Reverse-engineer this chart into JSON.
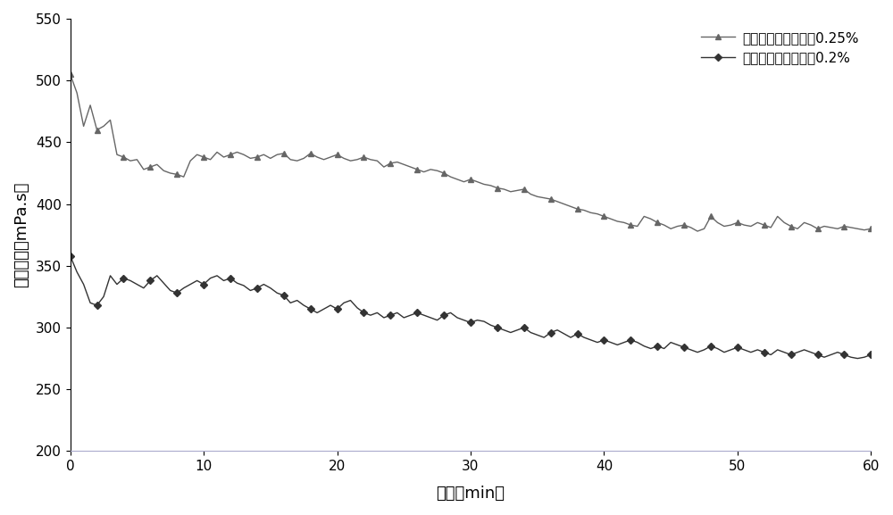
{
  "xlabel": "时间（min）",
  "ylabel": "剪切粘度（mPa.s）",
  "legend_025": "羞甲基胍胶质量分数0.25%",
  "legend_020": "羞甲基胍胶质量分数0.2%",
  "xlim": [
    0,
    60
  ],
  "ylim": [
    200,
    550
  ],
  "xticks": [
    0,
    10,
    20,
    30,
    40,
    50,
    60
  ],
  "yticks": [
    200,
    250,
    300,
    350,
    400,
    450,
    500,
    550
  ],
  "line_color_025": "#666666",
  "line_color_020": "#333333",
  "bg_color": "#ffffff",
  "x_025": [
    0,
    0.5,
    1,
    1.5,
    2,
    2.5,
    3,
    3.5,
    4,
    4.5,
    5,
    5.5,
    6,
    6.5,
    7,
    7.5,
    8,
    8.5,
    9,
    9.5,
    10,
    10.5,
    11,
    11.5,
    12,
    12.5,
    13,
    13.5,
    14,
    14.5,
    15,
    15.5,
    16,
    16.5,
    17,
    17.5,
    18,
    18.5,
    19,
    19.5,
    20,
    20.5,
    21,
    21.5,
    22,
    22.5,
    23,
    23.5,
    24,
    24.5,
    25,
    25.5,
    26,
    26.5,
    27,
    27.5,
    28,
    28.5,
    29,
    29.5,
    30,
    30.5,
    31,
    31.5,
    32,
    32.5,
    33,
    33.5,
    34,
    34.5,
    35,
    35.5,
    36,
    36.5,
    37,
    37.5,
    38,
    38.5,
    39,
    39.5,
    40,
    40.5,
    41,
    41.5,
    42,
    42.5,
    43,
    43.5,
    44,
    44.5,
    45,
    45.5,
    46,
    46.5,
    47,
    47.5,
    48,
    48.5,
    49,
    49.5,
    50,
    50.5,
    51,
    51.5,
    52,
    52.5,
    53,
    53.5,
    54,
    54.5,
    55,
    55.5,
    56,
    56.5,
    57,
    57.5,
    58,
    58.5,
    59,
    59.5,
    60
  ],
  "y_025": [
    505,
    490,
    463,
    480,
    460,
    463,
    468,
    440,
    438,
    435,
    436,
    428,
    430,
    432,
    427,
    425,
    424,
    422,
    435,
    440,
    438,
    436,
    442,
    438,
    440,
    442,
    440,
    437,
    438,
    440,
    437,
    440,
    441,
    436,
    435,
    437,
    441,
    438,
    436,
    438,
    440,
    437,
    435,
    436,
    438,
    436,
    435,
    430,
    433,
    434,
    432,
    430,
    428,
    426,
    428,
    427,
    425,
    422,
    420,
    418,
    420,
    418,
    416,
    415,
    413,
    412,
    410,
    411,
    412,
    408,
    406,
    405,
    404,
    402,
    400,
    398,
    396,
    395,
    393,
    392,
    390,
    388,
    386,
    385,
    383,
    382,
    390,
    388,
    385,
    383,
    380,
    382,
    383,
    381,
    378,
    380,
    390,
    385,
    382,
    383,
    385,
    383,
    382,
    385,
    383,
    381,
    390,
    385,
    382,
    380,
    385,
    383,
    380,
    382,
    381,
    380,
    382,
    381,
    380,
    379,
    380
  ],
  "x_020": [
    0,
    0.5,
    1,
    1.5,
    2,
    2.5,
    3,
    3.5,
    4,
    4.5,
    5,
    5.5,
    6,
    6.5,
    7,
    7.5,
    8,
    8.5,
    9,
    9.5,
    10,
    10.5,
    11,
    11.5,
    12,
    12.5,
    13,
    13.5,
    14,
    14.5,
    15,
    15.5,
    16,
    16.5,
    17,
    17.5,
    18,
    18.5,
    19,
    19.5,
    20,
    20.5,
    21,
    21.5,
    22,
    22.5,
    23,
    23.5,
    24,
    24.5,
    25,
    25.5,
    26,
    26.5,
    27,
    27.5,
    28,
    28.5,
    29,
    29.5,
    30,
    30.5,
    31,
    31.5,
    32,
    32.5,
    33,
    33.5,
    34,
    34.5,
    35,
    35.5,
    36,
    36.5,
    37,
    37.5,
    38,
    38.5,
    39,
    39.5,
    40,
    40.5,
    41,
    41.5,
    42,
    42.5,
    43,
    43.5,
    44,
    44.5,
    45,
    45.5,
    46,
    46.5,
    47,
    47.5,
    48,
    48.5,
    49,
    49.5,
    50,
    50.5,
    51,
    51.5,
    52,
    52.5,
    53,
    53.5,
    54,
    54.5,
    55,
    55.5,
    56,
    56.5,
    57,
    57.5,
    58,
    58.5,
    59,
    59.5,
    60
  ],
  "y_020": [
    358,
    345,
    335,
    320,
    318,
    325,
    342,
    335,
    340,
    338,
    335,
    332,
    338,
    342,
    336,
    330,
    328,
    332,
    335,
    338,
    335,
    340,
    342,
    338,
    340,
    336,
    334,
    330,
    332,
    335,
    332,
    328,
    326,
    320,
    322,
    318,
    315,
    312,
    315,
    318,
    315,
    320,
    322,
    316,
    312,
    310,
    312,
    308,
    310,
    312,
    308,
    310,
    312,
    310,
    308,
    306,
    310,
    312,
    308,
    306,
    304,
    306,
    305,
    302,
    300,
    298,
    296,
    298,
    300,
    296,
    294,
    292,
    296,
    298,
    295,
    292,
    295,
    292,
    290,
    288,
    290,
    288,
    286,
    288,
    290,
    288,
    285,
    283,
    285,
    283,
    288,
    286,
    284,
    282,
    280,
    282,
    285,
    283,
    280,
    282,
    284,
    282,
    280,
    282,
    280,
    278,
    282,
    280,
    278,
    280,
    282,
    280,
    278,
    276,
    278,
    280,
    278,
    276,
    275,
    276,
    278
  ]
}
